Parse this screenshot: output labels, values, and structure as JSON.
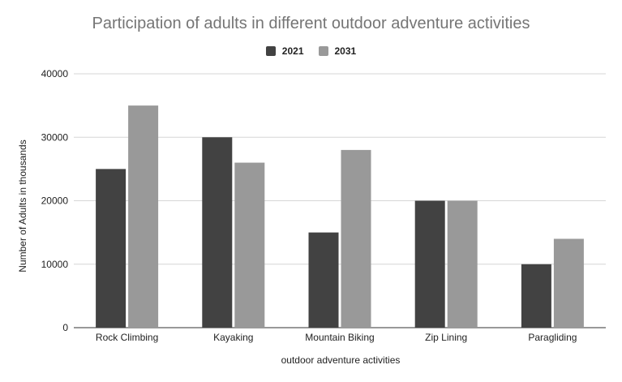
{
  "chart_data": {
    "type": "bar",
    "title": "Participation of adults in different outdoor adventure activities",
    "xlabel": "outdoor adventure activities",
    "ylabel": "Number of Adults in thousands",
    "categories": [
      "Rock Climbing",
      "Kayaking",
      "Mountain Biking",
      "Zip Lining",
      "Paragliding"
    ],
    "series": [
      {
        "name": "2021",
        "color": "#424242",
        "values": [
          25000,
          30000,
          15000,
          20000,
          10000
        ]
      },
      {
        "name": "2031",
        "color": "#999999",
        "values": [
          35000,
          26000,
          28000,
          20000,
          14000
        ]
      }
    ],
    "ylim": [
      0,
      40000
    ],
    "yticks": [
      "0",
      "10000",
      "20000",
      "30000",
      "40000"
    ],
    "grid": true,
    "legend_position": "top"
  }
}
